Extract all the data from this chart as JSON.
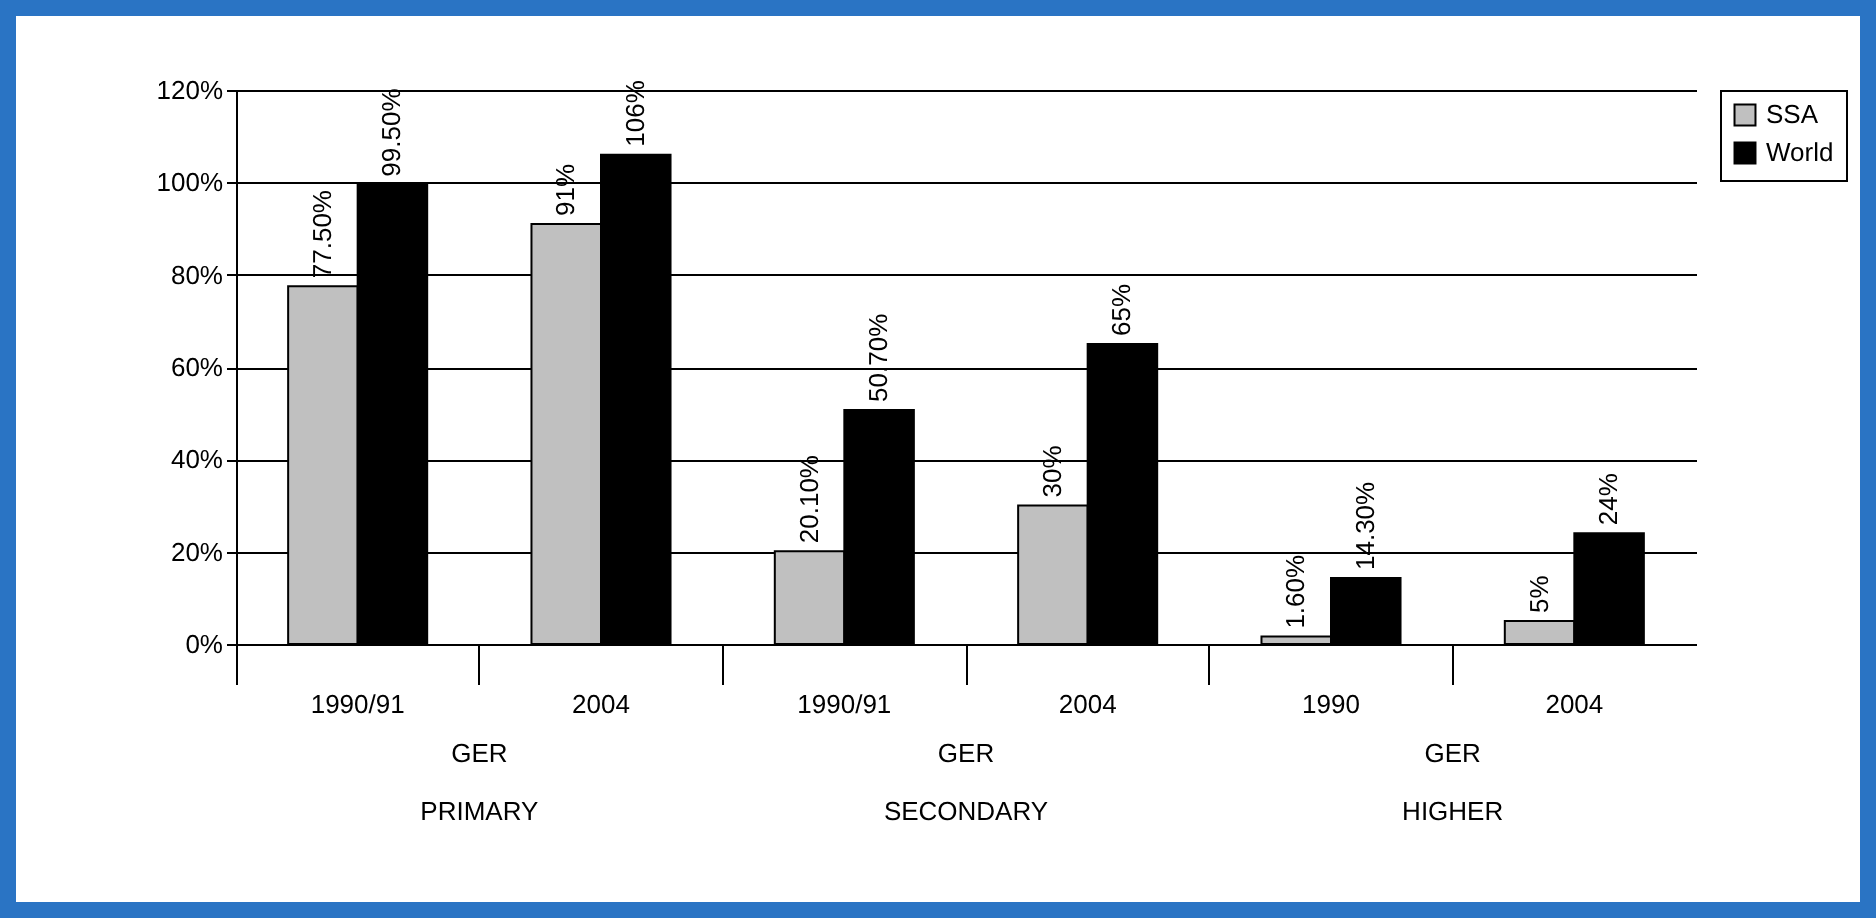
{
  "chart_data": {
    "type": "bar",
    "categories": [
      "1990/91",
      "2004",
      "1990/91",
      "2004",
      "1990",
      "2004"
    ],
    "series": [
      {
        "name": "SSA",
        "color": "#c0c0c0",
        "values": [
          77.5,
          91,
          20.1,
          30,
          1.6,
          5
        ],
        "value_labels": [
          "77.50%",
          "91%",
          "20.10%",
          "30%",
          "1.60%",
          "5%"
        ]
      },
      {
        "name": "World",
        "color": "#000000",
        "values": [
          99.5,
          106,
          50.7,
          65,
          14.3,
          24
        ],
        "value_labels": [
          "99.50%",
          "106%",
          "50.70%",
          "65%",
          "14.30%",
          "24%"
        ]
      }
    ],
    "ylim": [
      0,
      120
    ],
    "yticks": [
      {
        "value": 0,
        "label": "0%"
      },
      {
        "value": 20,
        "label": "20%"
      },
      {
        "value": 40,
        "label": "40%"
      },
      {
        "value": 60,
        "label": "60%"
      },
      {
        "value": 80,
        "label": "80%"
      },
      {
        "value": 100,
        "label": "100%"
      },
      {
        "value": 120,
        "label": "120%"
      }
    ],
    "grid": "y",
    "legend": "right",
    "annotations": [
      "GER",
      "GER",
      "GER",
      "PRIMARY",
      "SECONDARY",
      "HIGHER"
    ]
  }
}
